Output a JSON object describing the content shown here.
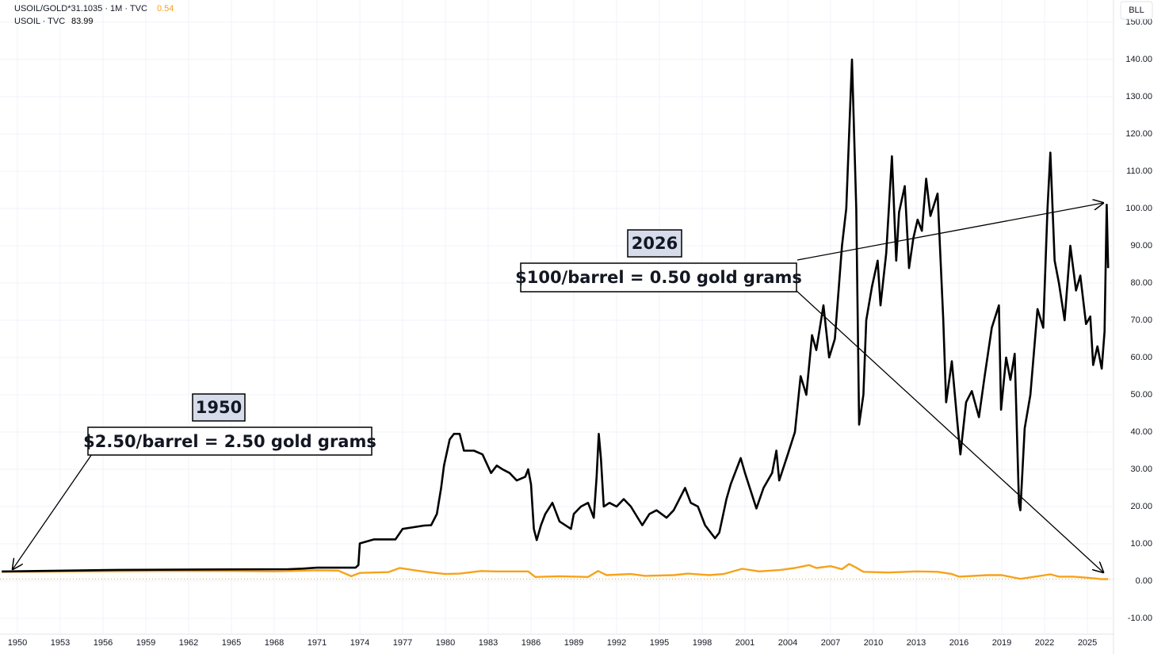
{
  "chart_data": {
    "type": "line",
    "legend_lines": [
      {
        "text": "USOIL/GOLD*31.1035 · 1M · TVC",
        "last": "0.54",
        "color": "#f7a21b"
      },
      {
        "text": "USOIL · TVC",
        "last": "83.99",
        "color": "#000000"
      }
    ],
    "scale_button": "BLL",
    "annotations": [
      {
        "year": "1950",
        "text": "$2.50/barrel = 2.50 gold grams"
      },
      {
        "year": "2026",
        "text": "$100/barrel = 0.50 gold grams"
      }
    ],
    "xlim": [
      1948.78,
      2026.83
    ],
    "xticks": [
      1950,
      1953,
      1956,
      1959,
      1962,
      1965,
      1968,
      1971,
      1974,
      1977,
      1980,
      1983,
      1986,
      1989,
      1992,
      1995,
      1998,
      2001,
      2004,
      2007,
      2010,
      2013,
      2016,
      2019,
      2022,
      2025
    ],
    "ylim": [
      -15,
      150
    ],
    "yticks": [
      {
        "value": -10,
        "label": "-10.00"
      },
      {
        "value": 0,
        "label": "0.00"
      },
      {
        "value": 10,
        "label": "10.00"
      },
      {
        "value": 20,
        "label": "20.00"
      },
      {
        "value": 30,
        "label": "30.00"
      },
      {
        "value": 40,
        "label": "40.00"
      },
      {
        "value": 50,
        "label": "50.00"
      },
      {
        "value": 60,
        "label": "60.00"
      },
      {
        "value": 70,
        "label": "70.00"
      },
      {
        "value": 80,
        "label": "80.00"
      },
      {
        "value": 90,
        "label": "90.00"
      },
      {
        "value": 100,
        "label": "100.00"
      },
      {
        "value": 110,
        "label": "110.00"
      },
      {
        "value": 120,
        "label": "120.00"
      },
      {
        "value": 130,
        "label": "130.00"
      },
      {
        "value": 140,
        "label": "140.00"
      },
      {
        "value": 150,
        "label": "150.00"
      }
    ],
    "grid": true,
    "series": [
      {
        "name": "USOIL",
        "color": "#000000",
        "x": [
          1948.9,
          1957,
          1969,
          1970,
          1971,
          1973.7,
          1973.9,
          1974.0,
          1975,
          1976.5,
          1977,
          1978.5,
          1979,
          1979.4,
          1979.7,
          1979.9,
          1980.3,
          1980.6,
          1981,
          1981.3,
          1982,
          1982.6,
          1983.2,
          1983.6,
          1984,
          1984.5,
          1985,
          1985.6,
          1985.8,
          1986.0,
          1986.2,
          1986.4,
          1986.7,
          1987,
          1987.5,
          1988,
          1988.8,
          1989,
          1989.5,
          1990,
          1990.4,
          1990.6,
          1990.75,
          1990.9,
          1991.1,
          1991.5,
          1992,
          1992.5,
          1993,
          1993.8,
          1994.3,
          1994.8,
          1995.5,
          1996,
          1996.8,
          1997.2,
          1997.7,
          1998.2,
          1998.9,
          1999.2,
          1999.7,
          2000,
          2000.7,
          2001,
          2001.8,
          2002.3,
          2002.9,
          2003.2,
          2003.4,
          2004,
          2004.5,
          2004.9,
          2005.3,
          2005.7,
          2006,
          2006.5,
          2006.9,
          2007.3,
          2007.8,
          2008.1,
          2008.5,
          2008.8,
          2009.0,
          2009.3,
          2009.5,
          2009.9,
          2010.3,
          2010.5,
          2010.9,
          2011.3,
          2011.6,
          2011.8,
          2012.2,
          2012.5,
          2012.8,
          2013.1,
          2013.4,
          2013.7,
          2014.0,
          2014.5,
          2014.9,
          2015.1,
          2015.5,
          2015.9,
          2016.1,
          2016.5,
          2016.9,
          2017.4,
          2017.8,
          2018.3,
          2018.8,
          2018.95,
          2019.3,
          2019.6,
          2019.9,
          2020.2,
          2020.3,
          2020.6,
          2021,
          2021.5,
          2021.9,
          2022.2,
          2022.4,
          2022.7,
          2023,
          2023.4,
          2023.8,
          2024.2,
          2024.5,
          2024.9,
          2025.2,
          2025.4,
          2025.7,
          2026.0,
          2026.2,
          2026.35,
          2026.45
        ],
        "values": [
          2.57,
          3.0,
          3.2,
          3.35,
          3.6,
          3.6,
          4.3,
          10.1,
          11.2,
          11.2,
          14,
          14.9,
          15,
          18,
          25,
          31,
          38,
          39.5,
          39.5,
          35,
          35,
          34,
          29,
          31,
          30,
          29,
          27,
          28,
          30,
          26,
          14,
          11,
          15,
          18,
          21,
          16,
          14,
          18,
          20,
          21,
          17,
          28,
          39.5,
          33,
          20,
          21,
          20,
          22,
          20,
          15,
          18,
          19,
          17,
          19,
          25,
          21,
          20,
          15,
          11.5,
          13,
          22,
          26,
          33,
          29,
          19.5,
          25,
          29,
          35,
          27,
          34,
          40,
          55,
          50,
          66,
          62,
          74,
          60,
          65,
          90,
          100,
          140,
          100,
          42,
          50,
          70,
          79,
          86,
          74,
          88,
          114,
          86,
          99,
          106,
          84,
          92,
          97,
          94,
          108,
          98,
          104,
          70,
          48,
          59,
          42,
          34,
          48,
          51,
          44,
          55,
          68,
          74,
          46,
          60,
          54,
          61,
          21,
          19,
          41,
          50,
          73,
          68,
          100,
          115,
          86,
          80,
          70,
          90,
          78,
          82,
          69,
          71,
          58,
          63,
          57,
          67,
          101,
          84
        ]
      },
      {
        "name": "USOIL/GOLD*31.1035",
        "color": "#f7a21b",
        "x": [
          1948.9,
          1955,
          1960,
          1965,
          1968,
          1971,
          1972.5,
          1973.4,
          1974,
          1976,
          1976.8,
          1978,
          1979,
          1980,
          1981,
          1982.5,
          1983.5,
          1985.8,
          1986.3,
          1988,
          1990,
          1990.7,
          1991.3,
          1993,
          1994,
          1996,
          1997,
          1998.5,
          1999.5,
          2000.8,
          2002,
          2003.5,
          2004.5,
          2005.5,
          2006,
          2007,
          2007.8,
          2008.3,
          2008.8,
          2009.3,
          2011,
          2013,
          2014.5,
          2015.5,
          2016,
          2018,
          2019,
          2020.3,
          2021,
          2022.4,
          2023,
          2024,
          2025,
          2026.0,
          2026.45
        ],
        "values": [
          2.5,
          2.6,
          2.7,
          2.7,
          2.6,
          2.9,
          2.8,
          1.3,
          2.2,
          2.4,
          3.5,
          2.8,
          2.3,
          1.9,
          2.0,
          2.7,
          2.6,
          2.6,
          1.1,
          1.3,
          1.1,
          2.7,
          1.6,
          1.9,
          1.4,
          1.6,
          2.0,
          1.6,
          1.9,
          3.3,
          2.6,
          3.0,
          3.5,
          4.3,
          3.5,
          4.0,
          3.2,
          4.6,
          3.6,
          2.5,
          2.3,
          2.6,
          2.5,
          1.9,
          1.2,
          1.6,
          1.6,
          0.6,
          1.0,
          1.8,
          1.2,
          1.2,
          0.9,
          0.5,
          0.54
        ]
      }
    ]
  }
}
